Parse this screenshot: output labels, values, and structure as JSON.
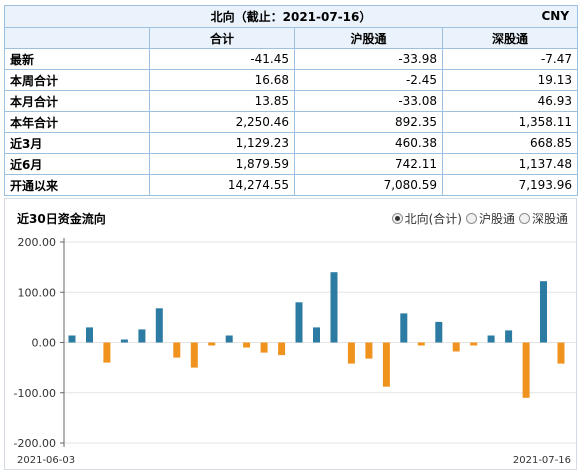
{
  "table": {
    "title": "北向（截止：2021-07-16）",
    "currency": "CNY",
    "columns": [
      "合计",
      "沪股通",
      "深股通"
    ],
    "rows": [
      {
        "label": "最新",
        "values": [
          "-41.45",
          "-33.98",
          "-7.47"
        ]
      },
      {
        "label": "本周合计",
        "values": [
          "16.68",
          "-2.45",
          "19.13"
        ]
      },
      {
        "label": "本月合计",
        "values": [
          "13.85",
          "-33.08",
          "46.93"
        ]
      },
      {
        "label": "本年合计",
        "values": [
          "2,250.46",
          "892.35",
          "1,358.11"
        ]
      },
      {
        "label": "近3月",
        "values": [
          "1,129.23",
          "460.38",
          "668.85"
        ]
      },
      {
        "label": "近6月",
        "values": [
          "1,879.59",
          "742.11",
          "1,137.48"
        ]
      },
      {
        "label": "开通以来",
        "values": [
          "14,274.55",
          "7,080.59",
          "7,193.96"
        ]
      }
    ]
  },
  "chart_panel": {
    "title": "近30日资金流向",
    "legend": [
      {
        "label": "北向(合计)",
        "checked": true
      },
      {
        "label": "沪股通",
        "checked": false
      },
      {
        "label": "深股通",
        "checked": false
      }
    ]
  },
  "colors": {
    "positive": "#2c7ba3",
    "negative": "#f0921e",
    "grid": "#e3e3e3",
    "axis": "#666666",
    "table_border": "#9cc0e0",
    "header_bg": "#eaf2fb"
  },
  "chart_data": {
    "type": "bar",
    "title": "近30日资金流向",
    "series_name": "北向(合计)",
    "start_label": "2021-06-03",
    "end_label": "2021-07-16",
    "yticks": [
      "200.00",
      "100.00",
      "0.00",
      "-100.00",
      "-200.00"
    ],
    "ylim": [
      -200,
      200
    ],
    "values": [
      14,
      30,
      -40,
      6,
      26,
      68,
      -30,
      -50,
      -6,
      14,
      -10,
      -20,
      -25,
      80,
      30,
      140,
      -42,
      -32,
      -88,
      58,
      -6,
      41,
      -18,
      -6,
      14,
      24,
      -110,
      122,
      -42
    ]
  }
}
